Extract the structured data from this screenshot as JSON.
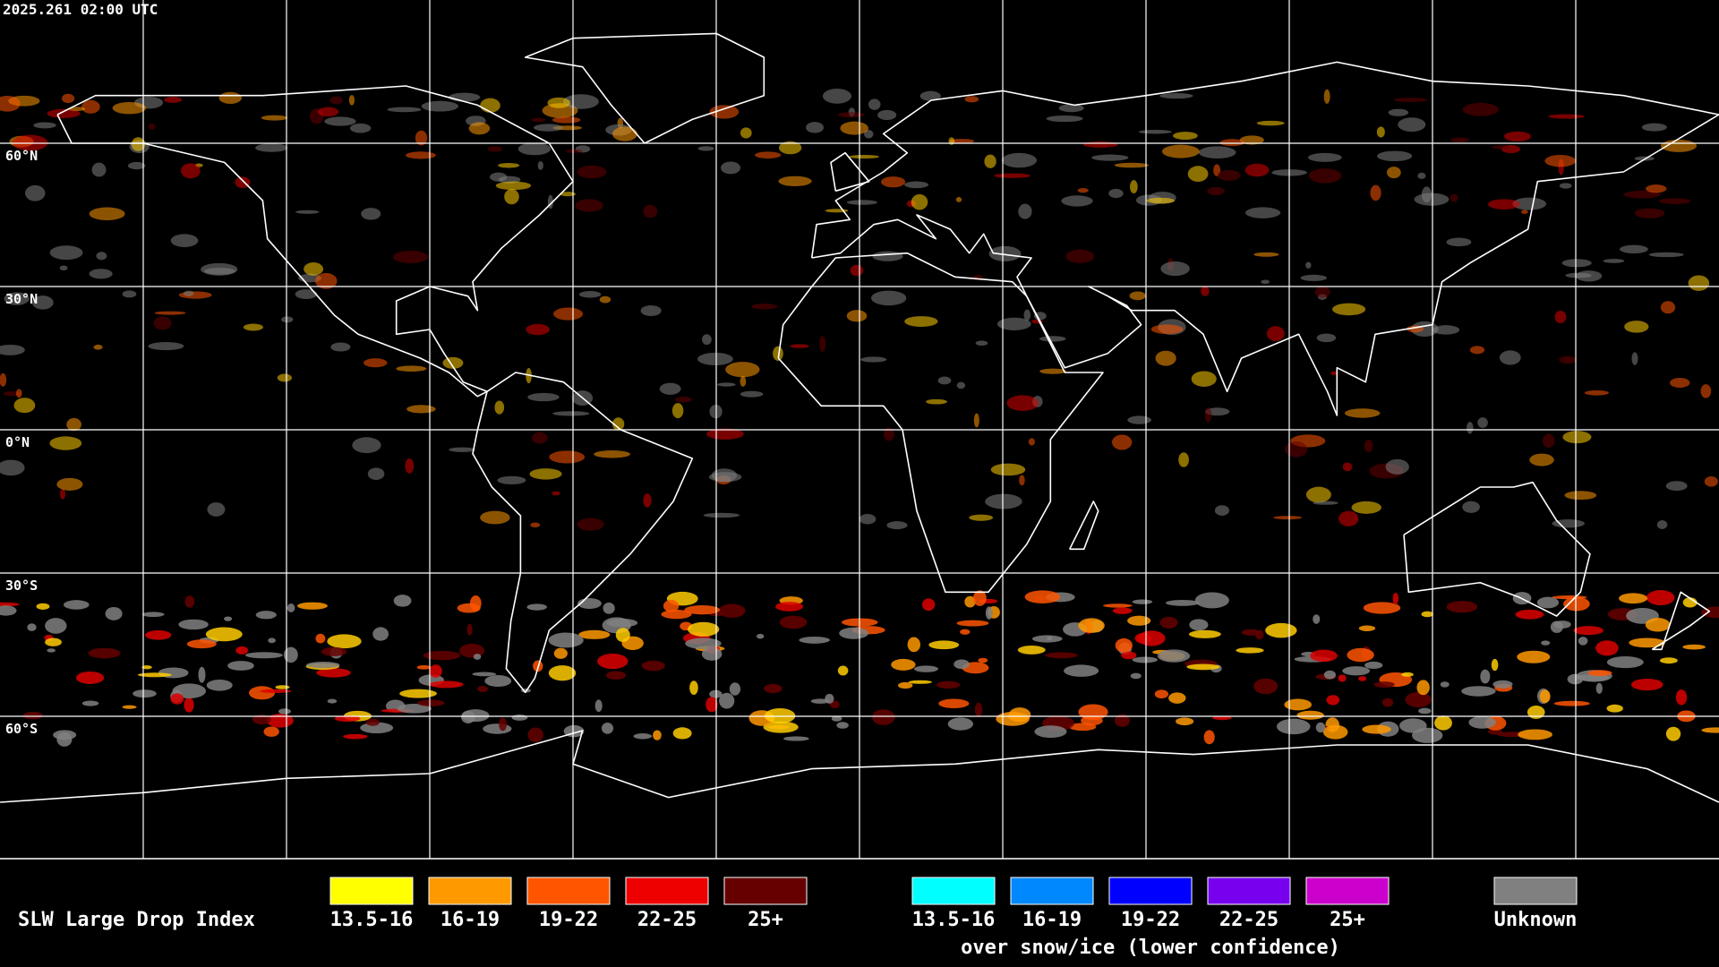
{
  "timestamp": "2025.261 02:00 UTC",
  "grid_labels": [
    "60°N",
    "30°N",
    "0°N",
    "30°S",
    "60°S"
  ],
  "legend": {
    "title": "SLW Large Drop Index",
    "groups": [
      {
        "items": [
          {
            "label": "13.5-16",
            "color": "#ffff00"
          },
          {
            "label": "16-19",
            "color": "#ff9900"
          },
          {
            "label": "19-22",
            "color": "#ff5500"
          },
          {
            "label": "22-25",
            "color": "#ee0000"
          },
          {
            "label": "25+",
            "color": "#660000"
          }
        ]
      },
      {
        "items": [
          {
            "label": "13.5-16",
            "color": "#00ffff"
          },
          {
            "label": "16-19",
            "color": "#0088ff"
          },
          {
            "label": "19-22",
            "color": "#0000ff"
          },
          {
            "label": "22-25",
            "color": "#7700ee"
          },
          {
            "label": "25+",
            "color": "#cc00cc"
          }
        ],
        "caption": "over snow/ice (lower confidence)"
      },
      {
        "items": [
          {
            "label": "Unknown",
            "color": "#808080"
          }
        ]
      }
    ]
  }
}
